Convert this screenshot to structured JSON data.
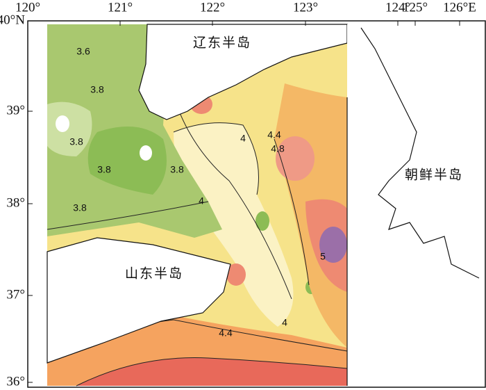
{
  "axes": {
    "longitude_labels": [
      "120°",
      "121°",
      "122°",
      "123°",
      "124°",
      "125°",
      "126°E"
    ],
    "latitude_labels": [
      "40°N",
      "39°",
      "38°",
      "37°",
      "36°"
    ]
  },
  "places": [
    "辽东半岛",
    "朝鲜半岛",
    "山东半岛"
  ],
  "contour_labels": [
    "3.6",
    "3.8",
    "3.8",
    "3.8",
    "3.8",
    "3.8",
    "4",
    "4",
    "4",
    "4.4",
    "4.4",
    "4.8",
    "5"
  ]
}
